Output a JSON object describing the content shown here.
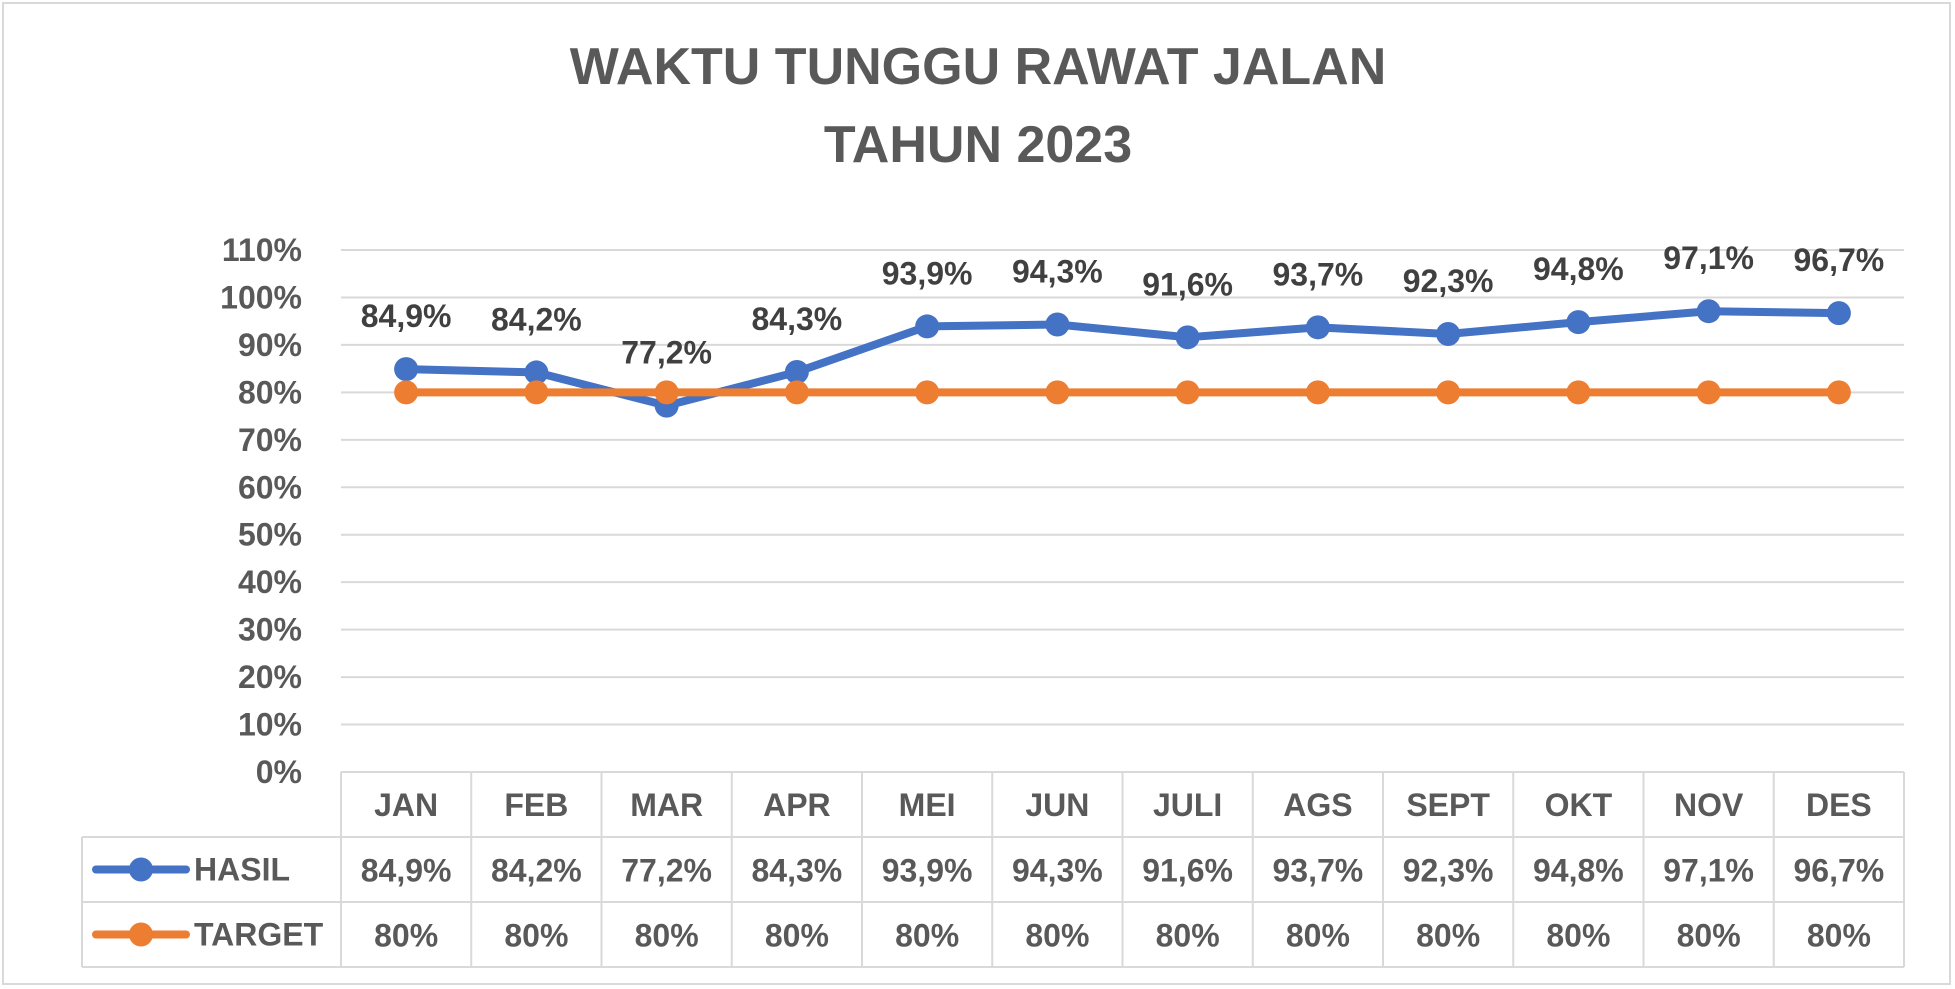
{
  "chart_data": {
    "type": "line",
    "title": [
      "WAKTU TUNGGU RAWAT  JALAN",
      "TAHUN 2023"
    ],
    "categories": [
      "JAN",
      "FEB",
      "MAR",
      "APR",
      "MEI",
      "JUN",
      "JULI",
      "AGS",
      "SEPT",
      "OKT",
      "NOV",
      "DES"
    ],
    "series": [
      {
        "name": "HASIL",
        "color": "#4472c4",
        "values": [
          84.9,
          84.2,
          77.2,
          84.3,
          93.9,
          94.3,
          91.6,
          93.7,
          92.3,
          94.8,
          97.1,
          96.7
        ],
        "labels": [
          "84,9%",
          "84,2%",
          "77,2%",
          "84,3%",
          "93,9%",
          "94,3%",
          "91,6%",
          "93,7%",
          "92,3%",
          "94,8%",
          "97,1%",
          "96,7%"
        ]
      },
      {
        "name": "TARGET",
        "color": "#ed7d31",
        "values": [
          80,
          80,
          80,
          80,
          80,
          80,
          80,
          80,
          80,
          80,
          80,
          80
        ],
        "labels": [
          "80%",
          "80%",
          "80%",
          "80%",
          "80%",
          "80%",
          "80%",
          "80%",
          "80%",
          "80%",
          "80%",
          "80%"
        ]
      }
    ],
    "ylim": [
      0,
      110
    ],
    "yticks": [
      "0%",
      "10%",
      "20%",
      "30%",
      "40%",
      "50%",
      "60%",
      "70%",
      "80%",
      "90%",
      "100%",
      "110%"
    ],
    "grid": true,
    "data_labels_series": "HASIL",
    "data_table": true,
    "gridline_color": "#d9d9d9"
  }
}
